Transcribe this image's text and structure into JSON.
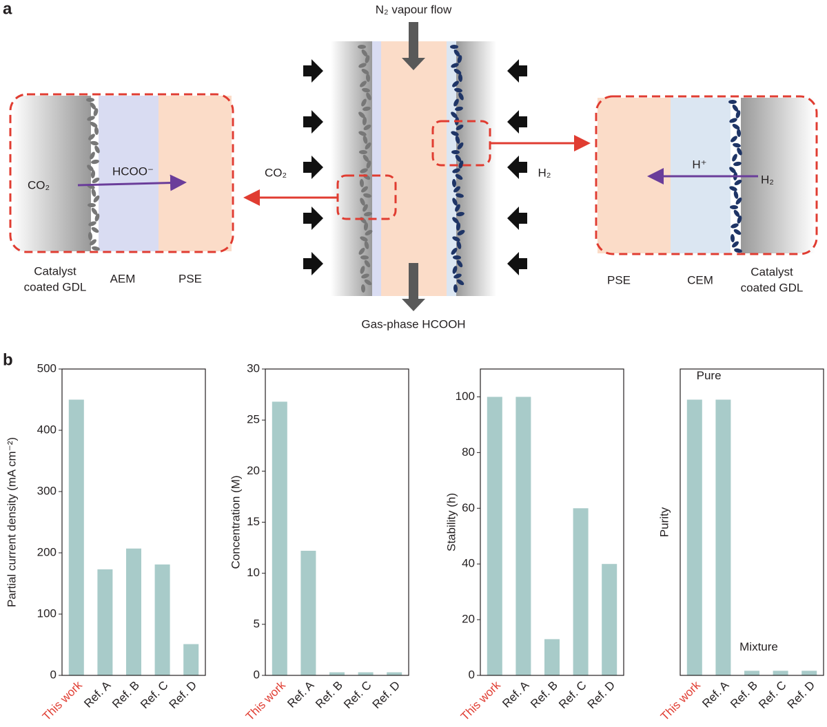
{
  "panel_labels": [
    "a",
    "b"
  ],
  "diagram": {
    "top_label": "N₂ vapour flow",
    "bottom_label": "Gas-phase HCOOH",
    "left_gas": "CO₂",
    "right_gas": "H₂",
    "left_inset": {
      "reactant": "CO₂",
      "ion": "HCOO⁻",
      "layers": [
        [
          "Catalyst",
          "coated GDL"
        ],
        [
          "AEM"
        ],
        [
          "PSE"
        ]
      ]
    },
    "right_inset": {
      "reactant": "H₂",
      "ion": "H⁺",
      "layers": [
        [
          "PSE"
        ],
        [
          "CEM"
        ],
        [
          "Catalyst",
          "coated GDL"
        ]
      ]
    }
  },
  "chart_data": [
    {
      "type": "bar",
      "ylabel": "Partial current density (mA cm⁻²)",
      "categories": [
        "This work",
        "Ref. A",
        "Ref. B",
        "Ref. C",
        "Ref. D"
      ],
      "category_colors": [
        "#e03c31",
        "#231f20",
        "#231f20",
        "#231f20",
        "#231f20"
      ],
      "values": [
        450,
        173,
        207,
        181,
        51
      ],
      "color": "#a8cbc9",
      "ylim": [
        0,
        500
      ],
      "yticks": [
        0,
        100,
        200,
        300,
        400,
        500
      ]
    },
    {
      "type": "bar",
      "ylabel": "Concentration (M)",
      "categories": [
        "This work",
        "Ref. A",
        "Ref. B",
        "Ref. C",
        "Ref. D"
      ],
      "category_colors": [
        "#e03c31",
        "#231f20",
        "#231f20",
        "#231f20",
        "#231f20"
      ],
      "values": [
        26.8,
        12.2,
        0.3,
        0.3,
        0.3
      ],
      "color": "#a8cbc9",
      "ylim": [
        0,
        30
      ],
      "yticks": [
        0,
        5,
        10,
        15,
        20,
        25,
        30
      ]
    },
    {
      "type": "bar",
      "ylabel": "Stability (h)",
      "categories": [
        "This work",
        "Ref. A",
        "Ref. B",
        "Ref. C",
        "Ref. D"
      ],
      "category_colors": [
        "#e03c31",
        "#231f20",
        "#231f20",
        "#231f20",
        "#231f20"
      ],
      "values": [
        100,
        100,
        13,
        60,
        40
      ],
      "color": "#a8cbc9",
      "ylim": [
        0,
        110
      ],
      "yticks": [
        0,
        20,
        40,
        60,
        80,
        100
      ]
    },
    {
      "type": "bar",
      "ylabel": "Purity",
      "categories": [
        "This work",
        "Ref. A",
        "Ref. B",
        "Ref. C",
        "Ref. D"
      ],
      "category_colors": [
        "#e03c31",
        "#231f20",
        "#231f20",
        "#231f20",
        "#231f20"
      ],
      "values": [
        90,
        90,
        1.5,
        1.5,
        1.5
      ],
      "color": "#a8cbc9",
      "ylim": [
        0,
        100
      ],
      "annotations": [
        "Pure",
        "Mixture"
      ]
    }
  ]
}
